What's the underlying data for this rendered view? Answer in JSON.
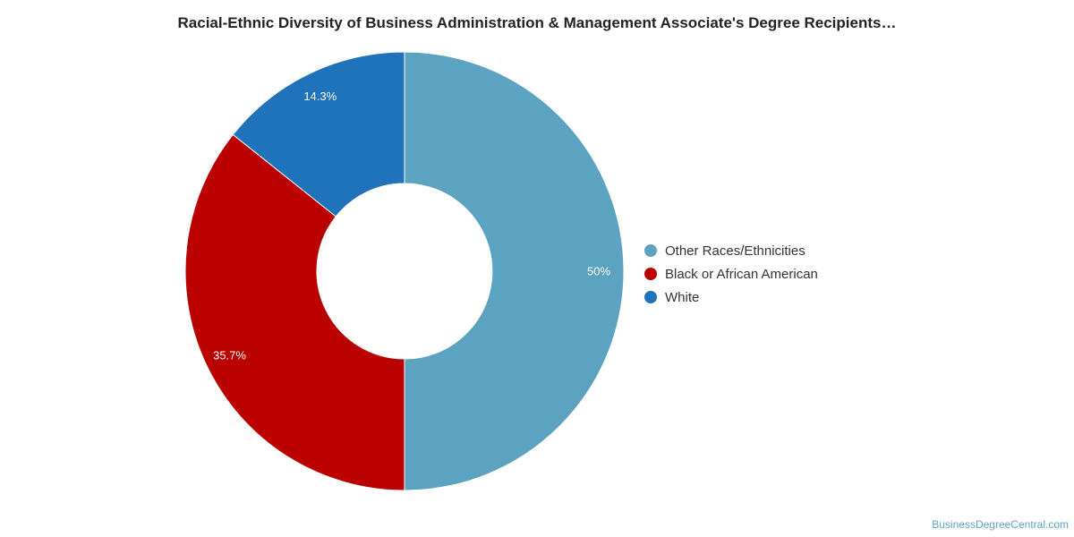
{
  "chart_data": {
    "type": "pie",
    "title": "Racial-Ethnic Diversity of Business Administration & Management Associate's Degree Recipients…",
    "donut": true,
    "legend_position": "right",
    "slices": [
      {
        "name": "Other Races/Ethnicities",
        "value": 50,
        "label": "50%",
        "color": "#5ba3c0"
      },
      {
        "name": "Black or African American",
        "value": 35.7,
        "label": "35.7%",
        "color": "#bb0000"
      },
      {
        "name": "White",
        "value": 14.3,
        "label": "14.3%",
        "color": "#1f73ba"
      }
    ]
  },
  "watermark": "BusinessDegreeCentral.com"
}
